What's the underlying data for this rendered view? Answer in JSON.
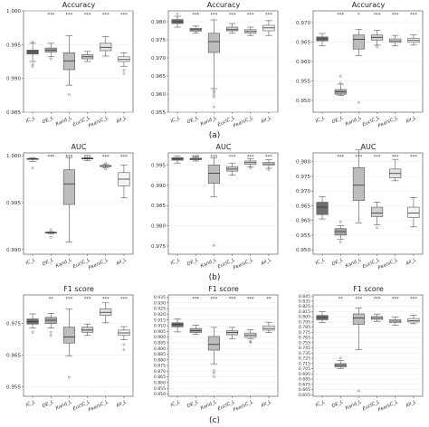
{
  "chart_data": [
    {
      "type": "box",
      "row": "a",
      "title": "Accuracy",
      "categories": [
        "IC_L",
        "DE_L",
        "Rand_L",
        "EuclC_L",
        "PearsC_L",
        "All_L"
      ],
      "significance": [
        "",
        "***",
        "***",
        "***",
        "***",
        "***"
      ],
      "ylim": [
        0.985,
        1.0
      ],
      "yticks": [
        0.985,
        0.99,
        0.995,
        1.0
      ],
      "ytick_labels": [
        "0.985",
        "0.990",
        "0.995",
        "1.000"
      ],
      "boxes": [
        {
          "min": 0.9925,
          "q1": 0.9936,
          "median": 0.9939,
          "q3": 0.9942,
          "max": 0.9952,
          "outliers": [
            0.9954,
            0.9921,
            0.9918
          ]
        },
        {
          "min": 0.9932,
          "q1": 0.9939,
          "median": 0.9942,
          "q3": 0.9945,
          "max": 0.9952,
          "outliers": [
            0.9929
          ]
        },
        {
          "min": 0.989,
          "q1": 0.9913,
          "median": 0.9926,
          "q3": 0.9938,
          "max": 0.9963,
          "outliers": [
            0.9876
          ]
        },
        {
          "min": 0.9925,
          "q1": 0.9929,
          "median": 0.9932,
          "q3": 0.9935,
          "max": 0.994,
          "outliers": []
        },
        {
          "min": 0.9933,
          "q1": 0.9941,
          "median": 0.9946,
          "q3": 0.9952,
          "max": 0.9962,
          "outliers": []
        },
        {
          "min": 0.9918,
          "q1": 0.9925,
          "median": 0.9928,
          "q3": 0.9932,
          "max": 0.9938,
          "outliers": [
            0.9912,
            0.9907
          ]
        }
      ]
    },
    {
      "type": "box",
      "row": "a",
      "title": "Accuracy",
      "categories": [
        "IC_L",
        "DE_L",
        "Rand_L",
        "EuclC_L",
        "PearsC_L",
        "All_L"
      ],
      "significance": [
        "",
        "***",
        "***",
        "***",
        "***",
        "***"
      ],
      "ylim": [
        0.955,
        0.983
      ],
      "yticks": [
        0.955,
        0.96,
        0.965,
        0.97,
        0.975,
        0.98
      ],
      "ytick_labels": [
        "0.955",
        "0.960",
        "0.965",
        "0.970",
        "0.975",
        "0.980"
      ],
      "boxes": [
        {
          "min": 0.9785,
          "q1": 0.9795,
          "median": 0.98,
          "q3": 0.9806,
          "max": 0.9815,
          "outliers": [
            0.9822
          ]
        },
        {
          "min": 0.9768,
          "q1": 0.9774,
          "median": 0.9778,
          "q3": 0.9782,
          "max": 0.9788,
          "outliers": []
        },
        {
          "min": 0.9615,
          "q1": 0.9715,
          "median": 0.9745,
          "q3": 0.9768,
          "max": 0.9805,
          "outliers": [
            0.961,
            0.9605,
            0.9598,
            0.9592,
            0.9565
          ]
        },
        {
          "min": 0.9768,
          "q1": 0.9775,
          "median": 0.9778,
          "q3": 0.9785,
          "max": 0.9795,
          "outliers": []
        },
        {
          "min": 0.9762,
          "q1": 0.9768,
          "median": 0.9773,
          "q3": 0.9778,
          "max": 0.9785,
          "outliers": []
        },
        {
          "min": 0.9762,
          "q1": 0.9775,
          "median": 0.9783,
          "q3": 0.979,
          "max": 0.9803,
          "outliers": []
        }
      ]
    },
    {
      "type": "box",
      "row": "a",
      "title": "Accuracy",
      "categories": [
        "IC_L",
        "DE_L",
        "Rand_L",
        "EuclC_L",
        "PearsC_L",
        "All_L"
      ],
      "significance": [
        "",
        "***",
        "*",
        "***",
        "***",
        "***"
      ],
      "ylim": [
        0.947,
        0.973
      ],
      "yticks": [
        0.95,
        0.955,
        0.96,
        0.965,
        0.97
      ],
      "ytick_labels": [
        "0.950",
        "0.955",
        "0.960",
        "0.965",
        "0.970"
      ],
      "boxes": [
        {
          "min": 0.964,
          "q1": 0.9653,
          "median": 0.9658,
          "q3": 0.9663,
          "max": 0.9672,
          "outliers": []
        },
        {
          "min": 0.9513,
          "q1": 0.9516,
          "median": 0.9522,
          "q3": 0.9528,
          "max": 0.9542,
          "outliers": [
            0.9562,
            0.9545
          ]
        },
        {
          "min": 0.9615,
          "q1": 0.9632,
          "median": 0.9657,
          "q3": 0.9668,
          "max": 0.9682,
          "outliers": [
            0.9495
          ]
        },
        {
          "min": 0.9642,
          "q1": 0.9655,
          "median": 0.9662,
          "q3": 0.9668,
          "max": 0.968,
          "outliers": [
            0.9638
          ]
        },
        {
          "min": 0.964,
          "q1": 0.9649,
          "median": 0.9653,
          "q3": 0.9658,
          "max": 0.9667,
          "outliers": []
        },
        {
          "min": 0.9642,
          "q1": 0.9649,
          "median": 0.9654,
          "q3": 0.9659,
          "max": 0.9668,
          "outliers": []
        }
      ]
    },
    {
      "type": "box",
      "row": "b",
      "title": "AUC",
      "categories": [
        "IC_L",
        "DE_L",
        "Rand_L",
        "EuclC_L",
        "PearsC_L",
        "All_L"
      ],
      "significance": [
        "",
        "***",
        "***",
        "***",
        "***",
        "***"
      ],
      "ylim": [
        0.9895,
        1.0003
      ],
      "yticks": [
        0.99,
        0.995,
        1.0
      ],
      "ytick_labels": [
        "0.990",
        "0.995",
        "1.000"
      ],
      "boxes": [
        {
          "min": 0.9994,
          "q1": 0.9996,
          "median": 0.99965,
          "q3": 0.9997,
          "max": 0.9998,
          "outliers": [
            0.9987
          ]
        },
        {
          "min": 0.9917,
          "q1": 0.99176,
          "median": 0.9918,
          "q3": 0.99185,
          "max": 0.9919,
          "outliers": [
            0.9921,
            0.9913
          ]
        },
        {
          "min": 0.9908,
          "q1": 0.9948,
          "median": 0.997,
          "q3": 0.9985,
          "max": 0.9998,
          "outliers": []
        },
        {
          "min": 0.9995,
          "q1": 0.99965,
          "median": 0.9997,
          "q3": 0.99975,
          "max": 0.9998,
          "outliers": []
        },
        {
          "min": 0.9987,
          "q1": 0.99885,
          "median": 0.9989,
          "q3": 0.99895,
          "max": 0.9991,
          "outliers": [
            0.9992,
            0.9986
          ]
        },
        {
          "min": 0.9955,
          "q1": 0.9968,
          "median": 0.9975,
          "q3": 0.9982,
          "max": 0.999,
          "outliers": []
        }
      ]
    },
    {
      "type": "box",
      "row": "b",
      "title": "AUC",
      "categories": [
        "IC_L",
        "DE_L",
        "Rand_L",
        "EuclC_L",
        "PearsC_L",
        "All_L"
      ],
      "significance": [
        "",
        "***",
        "***",
        "***",
        "***",
        "***"
      ],
      "ylim": [
        0.973,
        0.998
      ],
      "yticks": [
        0.975,
        0.98,
        0.985,
        0.99,
        0.995
      ],
      "ytick_labels": [
        "0.975",
        "0.980",
        "0.985",
        "0.990",
        "0.995"
      ],
      "boxes": [
        {
          "min": 0.9955,
          "q1": 0.9962,
          "median": 0.9965,
          "q3": 0.9968,
          "max": 0.9972,
          "outliers": []
        },
        {
          "min": 0.996,
          "q1": 0.9963,
          "median": 0.9965,
          "q3": 0.9967,
          "max": 0.997,
          "outliers": []
        },
        {
          "min": 0.9872,
          "q1": 0.9905,
          "median": 0.993,
          "q3": 0.995,
          "max": 0.9968,
          "outliers": [
            0.9752
          ]
        },
        {
          "min": 0.9925,
          "q1": 0.9935,
          "median": 0.994,
          "q3": 0.9946,
          "max": 0.9955,
          "outliers": []
        },
        {
          "min": 0.9946,
          "q1": 0.9952,
          "median": 0.9956,
          "q3": 0.996,
          "max": 0.9966,
          "outliers": [
            0.9943
          ]
        },
        {
          "min": 0.9942,
          "q1": 0.995,
          "median": 0.9953,
          "q3": 0.9957,
          "max": 0.9963,
          "outliers": [
            0.9938
          ]
        }
      ]
    },
    {
      "type": "box",
      "row": "b",
      "title": "AUC",
      "categories": [
        "IC_L",
        "DE_L",
        "Rand_L",
        "EuclC_L",
        "PearsC_L",
        "All_L"
      ],
      "significance": [
        "",
        "***",
        "***",
        "***",
        "***",
        "***"
      ],
      "ylim": [
        0.9485,
        0.983
      ],
      "yticks": [
        0.95,
        0.955,
        0.96,
        0.965,
        0.97,
        0.975,
        0.98
      ],
      "ytick_labels": [
        "0.950",
        "0.955",
        "0.960",
        "0.965",
        "0.970",
        "0.975",
        "0.980"
      ],
      "boxes": [
        {
          "min": 0.9605,
          "q1": 0.962,
          "median": 0.9645,
          "q3": 0.9662,
          "max": 0.968,
          "outliers": []
        },
        {
          "min": 0.9535,
          "q1": 0.955,
          "median": 0.9562,
          "q3": 0.9572,
          "max": 0.9582,
          "outliers": [
            0.9595,
            0.9527
          ]
        },
        {
          "min": 0.9592,
          "q1": 0.9668,
          "median": 0.972,
          "q3": 0.978,
          "max": 0.984,
          "outliers": []
        },
        {
          "min": 0.9585,
          "q1": 0.9613,
          "median": 0.9625,
          "q3": 0.9645,
          "max": 0.9662,
          "outliers": [
            0.9575
          ]
        },
        {
          "min": 0.9735,
          "q1": 0.9745,
          "median": 0.976,
          "q3": 0.9775,
          "max": 0.9808,
          "outliers": []
        },
        {
          "min": 0.9578,
          "q1": 0.961,
          "median": 0.9625,
          "q3": 0.9645,
          "max": 0.9678,
          "outliers": []
        }
      ]
    },
    {
      "type": "box",
      "row": "c",
      "title": "F1 score",
      "categories": [
        "IC_L",
        "DE_L",
        "Rand_L",
        "EuclC_L",
        "PearsC_L",
        "All_L"
      ],
      "significance": [
        "",
        "**",
        "***",
        "***",
        "***",
        "***"
      ],
      "ylim": [
        0.952,
        0.984
      ],
      "yticks": [
        0.955,
        0.965,
        0.975
      ],
      "ytick_labels": [
        "0.955",
        "0.965",
        "0.975"
      ],
      "boxes": [
        {
          "min": 0.9735,
          "q1": 0.9748,
          "median": 0.9756,
          "q3": 0.9764,
          "max": 0.978,
          "outliers": [
            0.9722
          ]
        },
        {
          "min": 0.9735,
          "q1": 0.975,
          "median": 0.976,
          "q3": 0.9769,
          "max": 0.9782,
          "outliers": [
            0.9722,
            0.9712
          ]
        },
        {
          "min": 0.9648,
          "q1": 0.9688,
          "median": 0.9707,
          "q3": 0.9738,
          "max": 0.9795,
          "outliers": [
            0.958
          ]
        },
        {
          "min": 0.9712,
          "q1": 0.9722,
          "median": 0.9729,
          "q3": 0.9738,
          "max": 0.9748,
          "outliers": []
        },
        {
          "min": 0.9752,
          "q1": 0.9775,
          "median": 0.9785,
          "q3": 0.9796,
          "max": 0.9815,
          "outliers": []
        },
        {
          "min": 0.9698,
          "q1": 0.9712,
          "median": 0.972,
          "q3": 0.9729,
          "max": 0.974,
          "outliers": [
            0.9683,
            0.9667
          ]
        }
      ]
    },
    {
      "type": "box",
      "row": "c",
      "title": "F1 score",
      "categories": [
        "IC_L",
        "DE_L",
        "Rand_L",
        "EuclC_L",
        "PearsC_L",
        "All_L"
      ],
      "significance": [
        "",
        "***",
        "***",
        "***",
        "***",
        "**"
      ],
      "ylim": [
        0.848,
        0.937
      ],
      "yticks": [
        0.85,
        0.855,
        0.86,
        0.865,
        0.87,
        0.875,
        0.88,
        0.885,
        0.89,
        0.895,
        0.9,
        0.905,
        0.91,
        0.915,
        0.92,
        0.925,
        0.93,
        0.935
      ],
      "ytick_labels": [
        "0.850",
        "0.855",
        "0.860",
        "0.865",
        "0.870",
        "0.875",
        "0.880",
        "0.885",
        "0.890",
        "0.895",
        "0.900",
        "0.905",
        "0.910",
        "0.915",
        "0.920",
        "0.925",
        "0.930",
        "0.935"
      ],
      "boxes": [
        {
          "min": 0.9045,
          "q1": 0.909,
          "median": 0.911,
          "q3": 0.9125,
          "max": 0.916,
          "outliers": []
        },
        {
          "min": 0.9025,
          "q1": 0.904,
          "median": 0.9055,
          "q3": 0.9075,
          "max": 0.9105,
          "outliers": []
        },
        {
          "min": 0.8765,
          "q1": 0.8885,
          "median": 0.8935,
          "q3": 0.9005,
          "max": 0.9085,
          "outliers": [
            0.8705,
            0.8685,
            0.8652
          ]
        },
        {
          "min": 0.8985,
          "q1": 0.902,
          "median": 0.904,
          "q3": 0.9055,
          "max": 0.9085,
          "outliers": []
        },
        {
          "min": 0.8985,
          "q1": 0.9,
          "median": 0.9018,
          "q3": 0.9035,
          "max": 0.9065,
          "outliers": [
            0.8962,
            0.8955
          ]
        },
        {
          "min": 0.904,
          "q1": 0.906,
          "median": 0.9075,
          "q3": 0.9098,
          "max": 0.913,
          "outliers": []
        }
      ]
    },
    {
      "type": "box",
      "row": "c",
      "title": "F1 score",
      "categories": [
        "IC_L",
        "DE_L",
        "Rand_L",
        "EuclC_L",
        "PearsC_L",
        "All_L"
      ],
      "significance": [
        "",
        "**",
        "***",
        "***",
        "***",
        "***"
      ],
      "ylim": [
        0.652,
        0.847
      ],
      "yticks": [
        0.655,
        0.665,
        0.675,
        0.685,
        0.695,
        0.705,
        0.715,
        0.725,
        0.735,
        0.745,
        0.755,
        0.765,
        0.775,
        0.785,
        0.795,
        0.805,
        0.815,
        0.825,
        0.835,
        0.845
      ],
      "ytick_labels": [
        "0.655",
        "0.665",
        "0.675",
        "0.685",
        "0.695",
        "0.705",
        "0.715",
        "0.725",
        "0.735",
        "0.745",
        "0.755",
        "0.765",
        "0.775",
        "0.785",
        "0.795",
        "0.805",
        "0.815",
        "0.825",
        "0.835",
        "0.845"
      ],
      "boxes": [
        {
          "min": 0.7938,
          "q1": 0.7992,
          "median": 0.8035,
          "q3": 0.8075,
          "max": 0.8145,
          "outliers": []
        },
        {
          "min": 0.7055,
          "q1": 0.7085,
          "median": 0.7115,
          "q3": 0.7148,
          "max": 0.7205,
          "outliers": [
            0.7255
          ]
        },
        {
          "min": 0.7415,
          "q1": 0.7905,
          "median": 0.8025,
          "q3": 0.8105,
          "max": 0.8218,
          "outliers": [
            0.6625
          ]
        },
        {
          "min": 0.7962,
          "q1": 0.7998,
          "median": 0.8025,
          "q3": 0.8055,
          "max": 0.8102,
          "outliers": []
        },
        {
          "min": 0.7885,
          "q1": 0.7938,
          "median": 0.7965,
          "q3": 0.7995,
          "max": 0.8048,
          "outliers": []
        },
        {
          "min": 0.7915,
          "q1": 0.7948,
          "median": 0.7975,
          "q3": 0.8015,
          "max": 0.8078,
          "outliers": []
        }
      ]
    }
  ],
  "row_labels": [
    "(a)",
    "(b)",
    "(c)"
  ],
  "colors": {
    "box_fills": [
      "#6f6f6f",
      "#a6a6a6",
      "#bdbdbd",
      "#d0d0d0",
      "#e2e2e2",
      "#f4f4f4"
    ],
    "edge": "#555555",
    "grid": "#e6e6e6",
    "axis": "#444444"
  }
}
